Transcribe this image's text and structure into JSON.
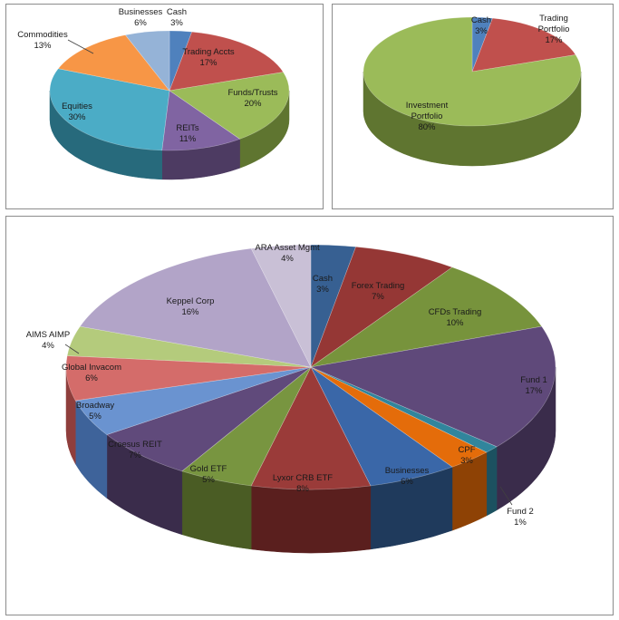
{
  "chart_data": [
    {
      "type": "pie",
      "title": "",
      "slices": [
        {
          "label": "Cash",
          "value": 3,
          "pct": "3%",
          "color": "#4f81bd",
          "side": "#2c4d75"
        },
        {
          "label": "Trading Accts",
          "value": 17,
          "pct": "17%",
          "color": "#c0504d",
          "side": "#772c2a"
        },
        {
          "label": "Funds/Trusts",
          "value": 20,
          "pct": "20%",
          "color": "#9bbb59",
          "side": "#5f7530"
        },
        {
          "label": "REITs",
          "value": 11,
          "pct": "11%",
          "color": "#8064a2",
          "side": "#4d3b62"
        },
        {
          "label": "Equities",
          "value": 30,
          "pct": "30%",
          "color": "#4bacc6",
          "side": "#276a7c"
        },
        {
          "label": "Commodities",
          "value": 13,
          "pct": "13%",
          "color": "#f79646",
          "side": "#b65708"
        },
        {
          "label": "Businesses",
          "value": 6,
          "pct": "6%",
          "color": "#95b3d7",
          "side": "#5982b5"
        }
      ]
    },
    {
      "type": "pie",
      "title": "",
      "slices": [
        {
          "label": "Cash",
          "value": 3,
          "pct": "3%",
          "color": "#4f81bd",
          "side": "#2c4d75"
        },
        {
          "label": "Trading Portfolio",
          "value": 17,
          "pct": "17%",
          "color": "#c0504d",
          "side": "#772c2a"
        },
        {
          "label": "Investment Portfolio",
          "value": 80,
          "pct": "80%",
          "color": "#9bbb59",
          "side": "#5f7530"
        }
      ]
    },
    {
      "type": "pie",
      "title": "",
      "slices": [
        {
          "label": "Cash",
          "value": 3,
          "pct": "3%",
          "color": "#376092",
          "side": "#1f3a5c"
        },
        {
          "label": "Forex Trading",
          "value": 7,
          "pct": "7%",
          "color": "#953735",
          "side": "#5a1f1e"
        },
        {
          "label": "CFDs Trading",
          "value": 10,
          "pct": "10%",
          "color": "#77933c",
          "side": "#4a5c24"
        },
        {
          "label": "Fund 1",
          "value": 17,
          "pct": "17%",
          "color": "#5f497a",
          "side": "#3a2c4b"
        },
        {
          "label": "Fund 2",
          "value": 1,
          "pct": "1%",
          "color": "#31859c",
          "side": "#1c5160"
        },
        {
          "label": "CPF",
          "value": 3,
          "pct": "3%",
          "color": "#e46c0a",
          "side": "#8e4205"
        },
        {
          "label": "Businesses",
          "value": 6,
          "pct": "6%",
          "color": "#3a67a8",
          "side": "#1f3a5c"
        },
        {
          "label": "Lyxor CRB ETF",
          "value": 8,
          "pct": "8%",
          "color": "#9a3b39",
          "side": "#5a1f1e"
        },
        {
          "label": "Gold ETF",
          "value": 5,
          "pct": "5%",
          "color": "#789540",
          "side": "#4a5c24"
        },
        {
          "label": "Croesus REIT",
          "value": 7,
          "pct": "7%",
          "color": "#604a7b",
          "side": "#3a2c4b"
        },
        {
          "label": "Broadway",
          "value": 5,
          "pct": "5%",
          "color": "#6a93d0",
          "side": "#3e639a"
        },
        {
          "label": "Global Invacom",
          "value": 6,
          "pct": "6%",
          "color": "#d46c6a",
          "side": "#8f3e3c"
        },
        {
          "label": "AIMS AIMP",
          "value": 4,
          "pct": "4%",
          "color": "#b4cb7c",
          "side": "#7d9445"
        },
        {
          "label": "Keppel Corp",
          "value": 16,
          "pct": "16%",
          "color": "#b2a4c8",
          "side": "#76679a"
        },
        {
          "label": "ARA Asset Mgmt",
          "value": 4,
          "pct": "4%",
          "color": "#c9c0d6",
          "side": "#8f82a6"
        }
      ]
    }
  ]
}
